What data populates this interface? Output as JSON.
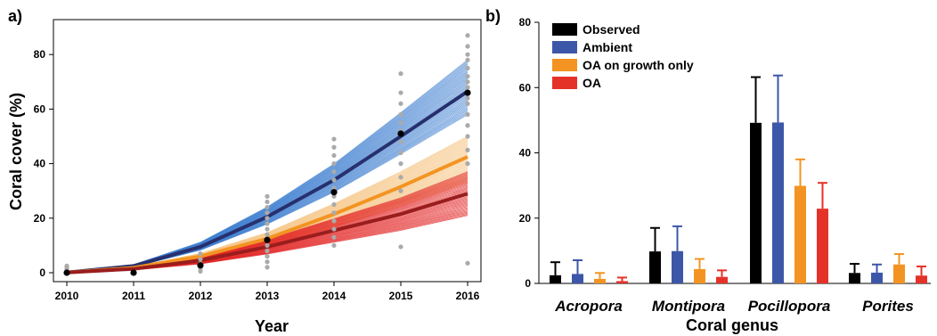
{
  "panel_a_label": "a)",
  "panel_b_label": "b)",
  "colors": {
    "ambient_band": "#3f7fd0",
    "ambient_mean": "#27306e",
    "growth_band": "#f6c98d",
    "growth_mean": "#f39422",
    "oa_band": "#e32727",
    "oa_mean": "#9a1d1d",
    "observed_points": "#aaaaaa",
    "observed_mean": "#000000",
    "bar_observed": "#000000",
    "bar_ambient": "#3d57a8",
    "bar_growth": "#f39422",
    "bar_oa": "#e53228"
  },
  "chart_data": [
    {
      "type": "line",
      "title": "",
      "xlabel": "Year",
      "ylabel": "Coral cover (%)",
      "x": [
        2010,
        2011,
        2012,
        2013,
        2014,
        2015,
        2016
      ],
      "xlim": [
        2010,
        2016
      ],
      "ylim": [
        0,
        85
      ],
      "yticks": [
        0,
        20,
        40,
        60,
        80
      ],
      "grid": false,
      "series": [
        {
          "name": "Ambient",
          "values": [
            0.1,
            2.5,
            9.5,
            20.5,
            34,
            50,
            66.5
          ],
          "band_low_final": 58,
          "band_high_final": 78
        },
        {
          "name": "OA on growth only",
          "values": [
            0.1,
            1.8,
            6,
            12.5,
            21.5,
            31.5,
            42.5
          ],
          "band_low_final": 33,
          "band_high_final": 50
        },
        {
          "name": "OA",
          "values": [
            0.1,
            1.4,
            4.5,
            9.5,
            15.5,
            21.5,
            29
          ],
          "band_low_final": 21,
          "band_high_final": 37
        }
      ],
      "observed_means": [
        0,
        0,
        2.7,
        12,
        29.5,
        51,
        66
      ],
      "observed_points": [
        [
          2010,
          [
            0,
            0.5,
            1,
            1.5,
            2,
            2.5
          ]
        ],
        [
          2012,
          [
            0.5,
            1.5,
            2.5,
            3.5,
            5,
            7
          ]
        ],
        [
          2013,
          [
            2,
            4,
            6,
            8,
            10,
            12,
            14,
            16,
            18,
            20,
            22,
            24,
            26,
            28
          ]
        ],
        [
          2014,
          [
            10,
            13,
            16,
            19,
            22,
            25,
            28,
            31,
            34,
            37,
            40,
            43,
            46,
            49
          ]
        ],
        [
          2015,
          [
            9.5,
            30,
            35,
            40,
            44,
            48,
            52,
            55,
            58,
            62,
            66,
            73
          ]
        ],
        [
          2016,
          [
            3.5,
            40,
            45,
            50,
            54,
            58,
            62,
            64,
            66,
            68,
            70,
            72,
            75,
            78,
            80,
            83,
            87
          ]
        ]
      ]
    },
    {
      "type": "bar",
      "title": "",
      "xlabel": "Coral genus",
      "ylabel": "",
      "categories": [
        "Acropora",
        "Montipora",
        "Pocillopora",
        "Porites"
      ],
      "ylim": [
        0,
        80
      ],
      "yticks": [
        0,
        20,
        40,
        60,
        80
      ],
      "legend_position": "top-left",
      "series": [
        {
          "name": "Observed",
          "values": [
            2.5,
            9.8,
            49.2,
            3.2
          ],
          "error": [
            6.5,
            17,
            63.2,
            6
          ]
        },
        {
          "name": "Ambient",
          "values": [
            2.9,
            9.9,
            49.3,
            3.3
          ],
          "error": [
            7.1,
            17.5,
            63.7,
            5.8
          ]
        },
        {
          "name": "OA on growth only",
          "values": [
            1.4,
            4.4,
            29.9,
            5.8
          ],
          "error": [
            3.2,
            7.5,
            38,
            9
          ]
        },
        {
          "name": "OA",
          "values": [
            0.7,
            2,
            22.9,
            2.4
          ],
          "error": [
            1.8,
            4,
            30.8,
            5.2
          ]
        }
      ]
    }
  ]
}
